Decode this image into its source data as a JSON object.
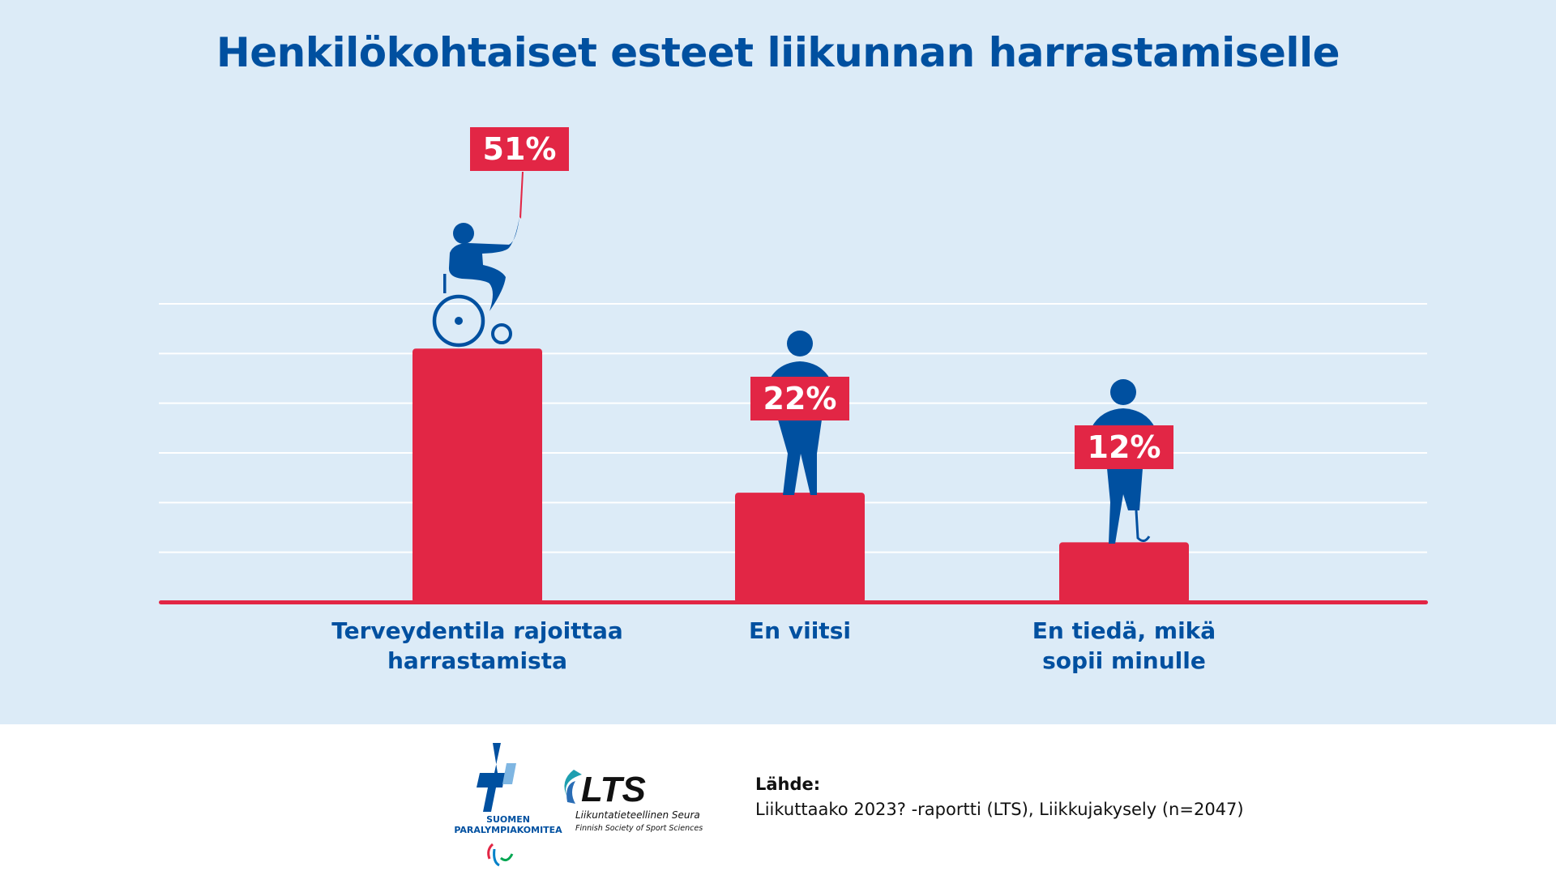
{
  "chart_data": {
    "type": "bar",
    "title": "Henkilökohtaiset esteet liikunnan harrastamiselle",
    "categories": [
      "Terveydentila rajoittaa harrastamista",
      "En viitsi",
      "En tiedä, mikä sopii minulle"
    ],
    "category_lines": [
      [
        "Terveydentila rajoittaa",
        "harrastamista"
      ],
      [
        "En viitsi"
      ],
      [
        "En tiedä, mikä",
        "sopii minulle"
      ]
    ],
    "values": [
      51,
      22,
      12
    ],
    "data_labels": [
      "51%",
      "22%",
      "12%"
    ],
    "unit": "%",
    "ylim": [
      0,
      60
    ],
    "grid": true,
    "gridline_step": 10,
    "axis_labels_shown": false,
    "icons": [
      "wheelchair-user-icon",
      "standing-person-icon",
      "person-with-prosthetic-leg-icon"
    ]
  },
  "colors": {
    "background": "#dcebf7",
    "bar": "#e22645",
    "text": "#0050a0",
    "figure": "#0050a0"
  },
  "footer": {
    "source_heading": "Lähde:",
    "source_text": "Liikuttaako 2023? -raportti (LTS), Liikkujakysely (n=2047)",
    "logos": [
      {
        "name": "Suomen Paralympiakomitea",
        "text": "SUOMEN PARALYMPIAKOMITEA"
      },
      {
        "name": "LTS",
        "text": "LTS",
        "subtitle": "Liikuntatieteellinen Seura",
        "subtitle2": "Finnish Society of Sport Sciences"
      }
    ]
  }
}
